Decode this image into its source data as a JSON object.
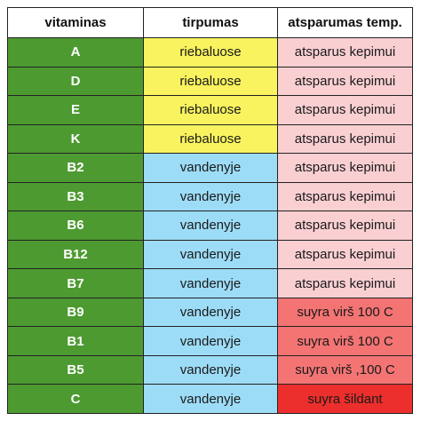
{
  "colors": {
    "vitamin_cell": "#4d9a31",
    "fat_soluble": "#f8f35e",
    "water_soluble": "#9ddcf6",
    "heat_resistant": "#f9cfd2",
    "heat_sensitive": "#f47474",
    "heat_very_sensitive": "#ec2f2c",
    "header_bg": "#ffffff"
  },
  "table": {
    "headers": [
      "vitaminas",
      "tirpumas",
      "atsparumas temp."
    ],
    "rows": [
      {
        "vitamin": "A",
        "solubility": "riebaluose",
        "resistance": "atsparus kepimui",
        "sol_color": "#f8f35e",
        "res_color": "#f9cfd2"
      },
      {
        "vitamin": "D",
        "solubility": "riebaluose",
        "resistance": "atsparus kepimui",
        "sol_color": "#f8f35e",
        "res_color": "#f9cfd2"
      },
      {
        "vitamin": "E",
        "solubility": "riebaluose",
        "resistance": "atsparus kepimui",
        "sol_color": "#f8f35e",
        "res_color": "#f9cfd2"
      },
      {
        "vitamin": "K",
        "solubility": "riebaluose",
        "resistance": "atsparus kepimui",
        "sol_color": "#f8f35e",
        "res_color": "#f9cfd2"
      },
      {
        "vitamin": "B2",
        "solubility": "vandenyje",
        "resistance": "atsparus kepimui",
        "sol_color": "#9ddcf6",
        "res_color": "#f9cfd2"
      },
      {
        "vitamin": "B3",
        "solubility": "vandenyje",
        "resistance": "atsparus kepimui",
        "sol_color": "#9ddcf6",
        "res_color": "#f9cfd2"
      },
      {
        "vitamin": "B6",
        "solubility": "vandenyje",
        "resistance": "atsparus kepimui",
        "sol_color": "#9ddcf6",
        "res_color": "#f9cfd2"
      },
      {
        "vitamin": "B12",
        "solubility": "vandenyje",
        "resistance": "atsparus kepimui",
        "sol_color": "#9ddcf6",
        "res_color": "#f9cfd2"
      },
      {
        "vitamin": "B7",
        "solubility": "vandenyje",
        "resistance": "atsparus kepimui",
        "sol_color": "#9ddcf6",
        "res_color": "#f9cfd2"
      },
      {
        "vitamin": "B9",
        "solubility": "vandenyje",
        "resistance": "suyra virš 100 C",
        "sol_color": "#9ddcf6",
        "res_color": "#f47474"
      },
      {
        "vitamin": "B1",
        "solubility": "vandenyje",
        "resistance": "suyra virš 100 C",
        "sol_color": "#9ddcf6",
        "res_color": "#f47474"
      },
      {
        "vitamin": "B5",
        "solubility": "vandenyje",
        "resistance": "suyra virš ,100 C",
        "sol_color": "#9ddcf6",
        "res_color": "#f47474"
      },
      {
        "vitamin": "C",
        "solubility": "vandenyje",
        "resistance": "suyra šildant",
        "sol_color": "#9ddcf6",
        "res_color": "#ec2f2c"
      }
    ]
  }
}
